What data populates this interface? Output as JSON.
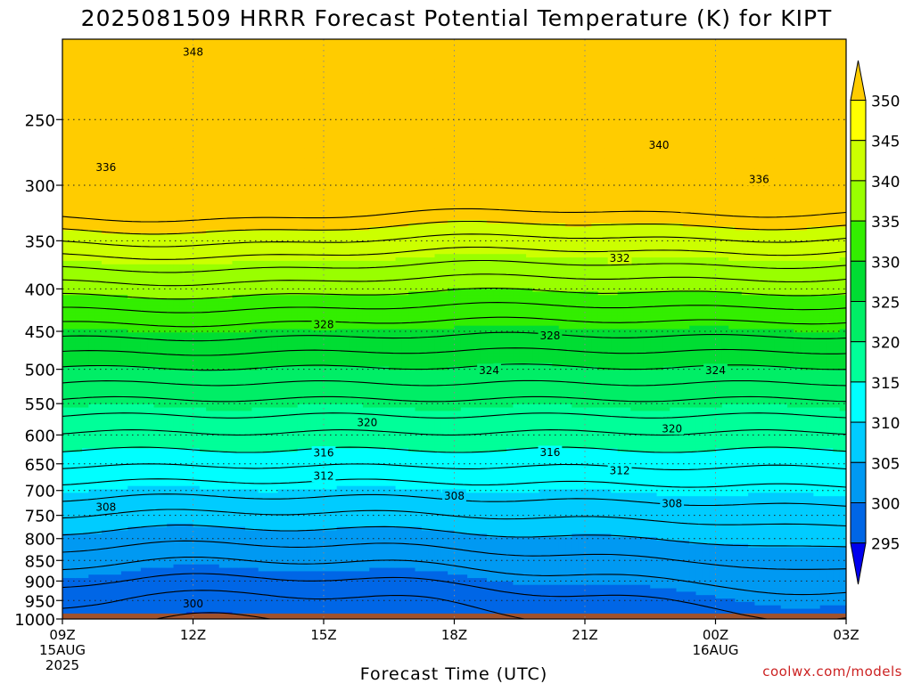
{
  "chart_data": {
    "type": "heatmap",
    "title": "2025081509 HRRR Forecast Potential Temperature (K) for KIPT",
    "xlabel": "Forecast Time (UTC)",
    "ylabel": "",
    "watermark": "coolwx.com/models",
    "x_ticks": [
      {
        "label": "09Z",
        "sub": [
          "15AUG",
          "2025"
        ]
      },
      {
        "label": "12Z",
        "sub": []
      },
      {
        "label": "15Z",
        "sub": []
      },
      {
        "label": "18Z",
        "sub": []
      },
      {
        "label": "21Z",
        "sub": []
      },
      {
        "label": "00Z",
        "sub": [
          "16AUG"
        ]
      },
      {
        "label": "03Z",
        "sub": []
      }
    ],
    "x_hours": [
      0,
      3,
      6,
      9,
      12,
      15,
      18
    ],
    "y_axis": {
      "scale": "log",
      "min_hpa": 1000,
      "max_hpa": 200,
      "reversed": true
    },
    "y_ticks": [
      250,
      300,
      350,
      400,
      450,
      500,
      550,
      600,
      650,
      700,
      750,
      800,
      850,
      900,
      950,
      1000
    ],
    "ground_level_hpa": 985,
    "ground_color": "#a0522d",
    "contour_interval": 2,
    "contour_labels": [
      {
        "value": 348,
        "hour": 3.0,
        "hpa": 207
      },
      {
        "value": 340,
        "hour": 13.7,
        "hpa": 268
      },
      {
        "value": 336,
        "hour": 1.0,
        "hpa": 285
      },
      {
        "value": 336,
        "hour": 16.0,
        "hpa": 295
      },
      {
        "value": 332,
        "hour": 12.8,
        "hpa": 367
      },
      {
        "value": 328,
        "hour": 6.0,
        "hpa": 441
      },
      {
        "value": 328,
        "hour": 11.2,
        "hpa": 455
      },
      {
        "value": 324,
        "hour": 9.8,
        "hpa": 501
      },
      {
        "value": 324,
        "hour": 15.0,
        "hpa": 501
      },
      {
        "value": 320,
        "hour": 7.0,
        "hpa": 579
      },
      {
        "value": 320,
        "hour": 14.0,
        "hpa": 589
      },
      {
        "value": 316,
        "hour": 6.0,
        "hpa": 630
      },
      {
        "value": 316,
        "hour": 11.2,
        "hpa": 629
      },
      {
        "value": 312,
        "hour": 6.0,
        "hpa": 672
      },
      {
        "value": 312,
        "hour": 12.8,
        "hpa": 662
      },
      {
        "value": 308,
        "hour": 1.0,
        "hpa": 732
      },
      {
        "value": 308,
        "hour": 9.0,
        "hpa": 710
      },
      {
        "value": 308,
        "hour": 14.0,
        "hpa": 725
      },
      {
        "value": 300,
        "hour": 3.0,
        "hpa": 958
      }
    ],
    "colorbar": {
      "values": [
        295,
        300,
        305,
        310,
        315,
        320,
        325,
        330,
        335,
        340,
        345,
        350
      ],
      "colors": [
        "#0000ee",
        "#0033dd",
        "#0066e6",
        "#0099f2",
        "#00ccff",
        "#00ffff",
        "#00ff99",
        "#00ee66",
        "#00dd33",
        "#33ee00",
        "#99ff00",
        "#ccff00",
        "#ffff00",
        "#ffcc00"
      ]
    }
  }
}
